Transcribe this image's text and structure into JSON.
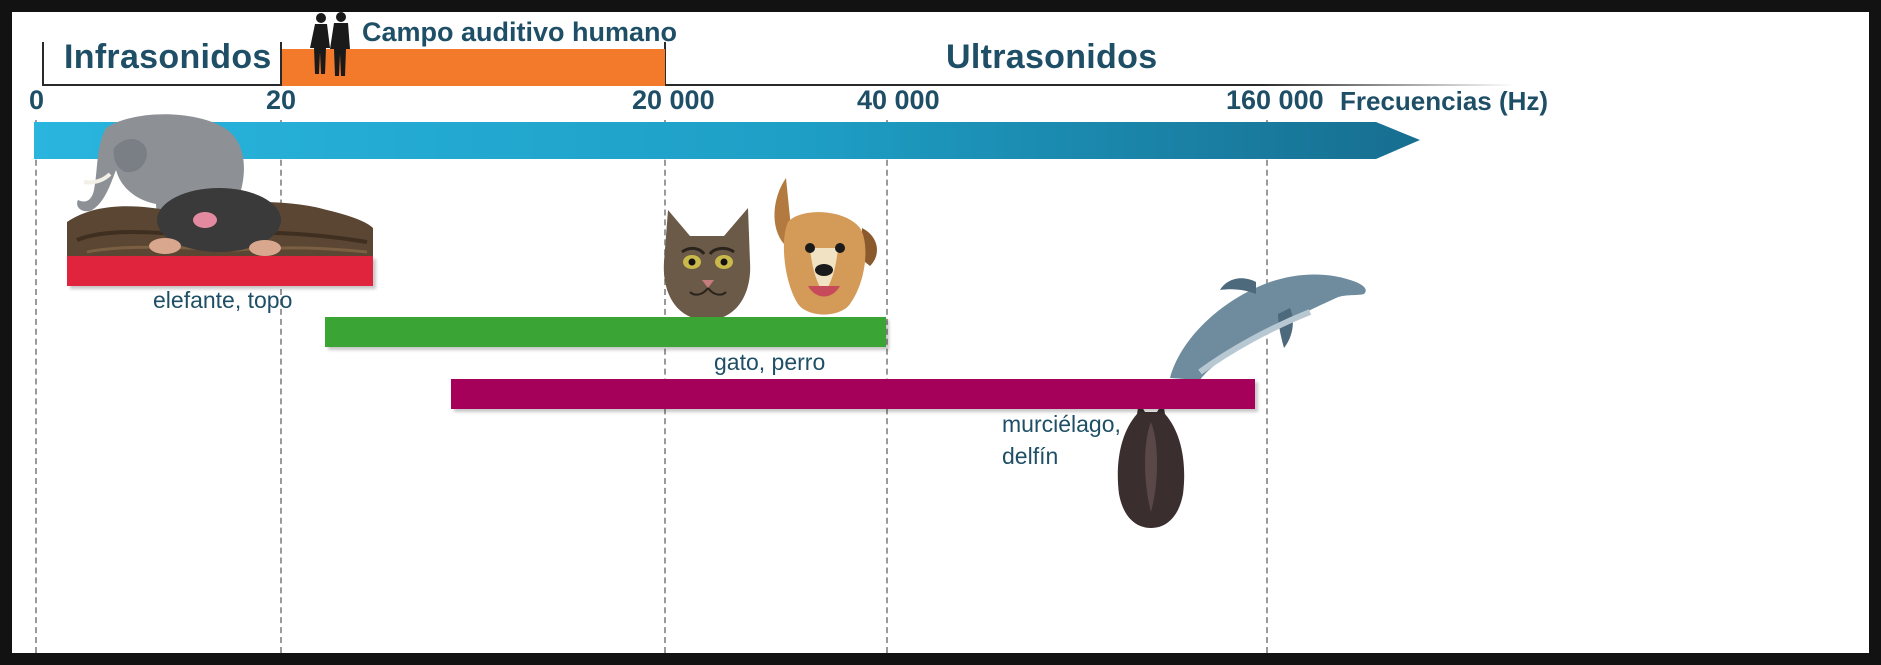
{
  "regions": {
    "infra": "Infrasonidos",
    "human": "Campo auditivo humano",
    "ultra": "Ultrasonidos"
  },
  "axis": {
    "title": "Frecuencias (Hz)",
    "ticks": [
      "0",
      "20",
      "20 000",
      "40 000",
      "160 000"
    ]
  },
  "colors": {
    "axis_arrow": "#1e9fc6",
    "human_band": "#f47a2b",
    "text": "#1f4f66"
  },
  "ranges": [
    {
      "label": "elefante, topo",
      "color": "#e0243e",
      "icons": [
        "elephant-icon",
        "mole-icon"
      ]
    },
    {
      "label": "gato, perro",
      "color": "#3aa535",
      "icons": [
        "cat-icon",
        "dog-icon"
      ]
    },
    {
      "label_lines": [
        "murciélago,",
        "delfín"
      ],
      "color": "#a5005a",
      "icons": [
        "dolphin-icon",
        "bat-icon"
      ]
    }
  ],
  "icons": {
    "human_band": "human-silhouettes-icon"
  }
}
